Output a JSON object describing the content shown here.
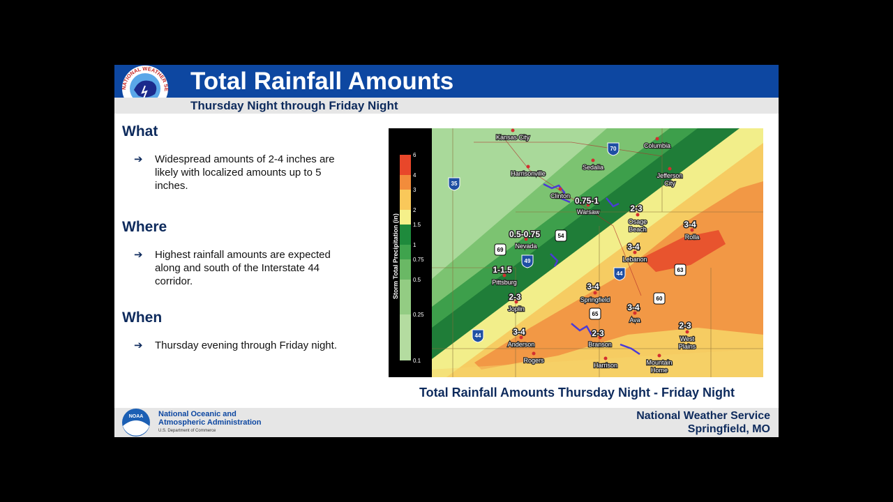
{
  "header": {
    "title": "Total Rainfall Amounts",
    "subtitle": "Thursday Night through Friday Night",
    "logo_text": "NATIONAL WEATHER SERVICE"
  },
  "sections": [
    {
      "heading": "What",
      "bullets": [
        "Widespread amounts of 2-4 inches are likely with localized amounts up to 5 inches."
      ]
    },
    {
      "heading": "Where",
      "bullets": [
        "Highest rainfall amounts are expected along and south of the Interstate 44 corridor."
      ]
    },
    {
      "heading": "When",
      "bullets": [
        "Thursday evening through Friday night."
      ]
    }
  ],
  "map": {
    "legend": {
      "title": "Storm Total Precipitation (in)",
      "labels": [
        "6",
        "4",
        "3",
        "2",
        "1.5",
        "1",
        "0.75",
        "0.5",
        "0.25",
        "0.1"
      ]
    },
    "places": [
      {
        "lines": [
          "Kansas City"
        ]
      },
      {
        "lines": [
          "Columbia"
        ]
      },
      {
        "lines": [
          "Sedalia"
        ]
      },
      {
        "lines": [
          "Harrisonville"
        ]
      },
      {
        "lines": [
          "Jefferson",
          "City"
        ]
      },
      {
        "lines": [
          "Clinton"
        ]
      },
      {
        "lines": [
          "Warsaw"
        ]
      },
      {
        "lines": [
          "Osage",
          "Beach"
        ]
      },
      {
        "lines": [
          "Nevada"
        ]
      },
      {
        "lines": [
          "Rolla"
        ]
      },
      {
        "lines": [
          "Lebanon"
        ]
      },
      {
        "lines": [
          "Pittsburg"
        ]
      },
      {
        "lines": [
          "Springfield"
        ]
      },
      {
        "lines": [
          "Joplin"
        ]
      },
      {
        "lines": [
          "Ava"
        ]
      },
      {
        "lines": [
          "Anderson"
        ]
      },
      {
        "lines": [
          "Branson"
        ]
      },
      {
        "lines": [
          "West",
          "Plains"
        ]
      },
      {
        "lines": [
          "Rogers"
        ]
      },
      {
        "lines": [
          "Harrison"
        ]
      },
      {
        "lines": [
          "Mountain",
          "Home"
        ]
      }
    ],
    "amounts": [
      "0.75-1",
      "0.5-0.75",
      "2-3",
      "3-4",
      "3-4",
      "1-1.5",
      "3-4",
      "2-3",
      "3-4",
      "2-3",
      "2-3",
      "3-4"
    ],
    "highways": [
      "35",
      "70",
      "69",
      "49",
      "54",
      "44",
      "63",
      "60",
      "65",
      "44"
    ]
  },
  "caption": "Total Rainfall Amounts Thursday Night - Friday Night",
  "footer": {
    "noaa_logo": "NOAA",
    "agency": [
      "National Oceanic and",
      "Atmospheric Administration"
    ],
    "department": "U.S. Department of Commerce",
    "office": [
      "National Weather Service",
      "Springfield, MO"
    ]
  }
}
